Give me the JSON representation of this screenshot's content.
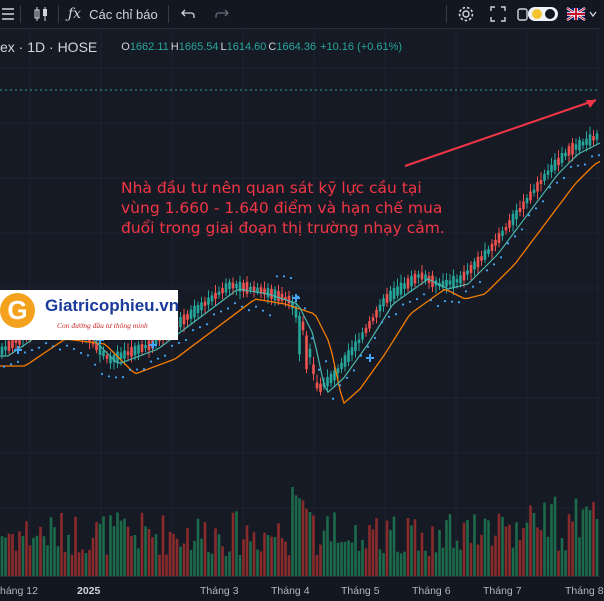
{
  "toolbar": {
    "indicators_label": "Các chỉ báo"
  },
  "legend": {
    "symbol": "ex · 1D · HOSE",
    "open_label": "O",
    "open": "1662.11",
    "high_label": "H",
    "high": "1665.54",
    "low_label": "L",
    "low": "1614.60",
    "close_label": "C",
    "close": "1664.36",
    "change": "+10.16 (+0.61%)"
  },
  "annotation": {
    "text": "Nhà đầu tư nên quan sát kỹ lực cầu tại vùng 1.660 - 1.640 điểm và hạn chế mua đuổi trong giai đoạn thị trường nhạy cảm."
  },
  "logo": {
    "letter": "G",
    "brand": "Giatricophieu.vn",
    "tagline": "Con đường đầu tư thông minh"
  },
  "xaxis": {
    "labels": [
      "háng 12",
      "2025",
      "Tháng 3",
      "Tháng 4",
      "Tháng 5",
      "Tháng 6",
      "Tháng 7",
      "Tháng 8"
    ]
  },
  "colors": {
    "up": "#26a69a",
    "down": "#ef5350",
    "ma_fast": "#4db6ac",
    "ma_slow": "#f57c00",
    "psar": "#42a5f5",
    "annotation": "#f23645",
    "background": "#161a25"
  },
  "icons": [
    "candles-icon",
    "fx-icon",
    "undo-icon",
    "redo-icon",
    "settings-icon",
    "fullscreen-icon",
    "camera-icon",
    "theme-toggle-icon",
    "uk-flag-icon"
  ]
}
